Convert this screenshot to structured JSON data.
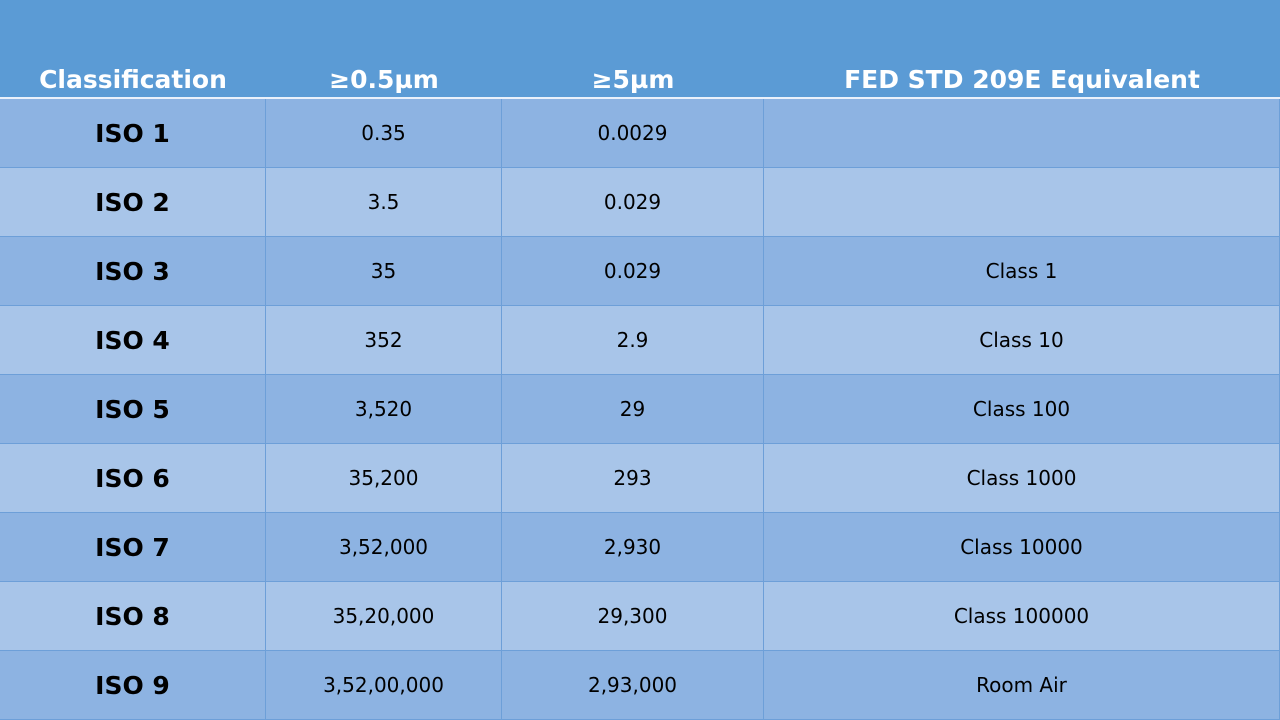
{
  "table": {
    "headers": [
      "Classification",
      "≥0.5µm",
      "≥5µm",
      "FED STD 209E Equivalent"
    ],
    "rows": [
      [
        "ISO 1",
        "0.35",
        "0.0029",
        null
      ],
      [
        "ISO 2",
        "3.5",
        "0.029",
        null
      ],
      [
        "ISO 3",
        "35",
        "0.029",
        "Class 1"
      ],
      [
        "ISO 4",
        "352",
        "2.9",
        "Class 10"
      ],
      [
        "ISO 5",
        "3,520",
        "29",
        "Class 100"
      ],
      [
        "ISO 6",
        "35,200",
        "293",
        "Class 1000"
      ],
      [
        "ISO 7",
        "3,52,000",
        "2,930",
        "Class 10000"
      ],
      [
        "ISO 8",
        "35,20,000",
        "29,300",
        "Class 100000"
      ],
      [
        "ISO 9",
        "3,52,00,000",
        "2,93,000",
        "Room Air"
      ]
    ]
  }
}
